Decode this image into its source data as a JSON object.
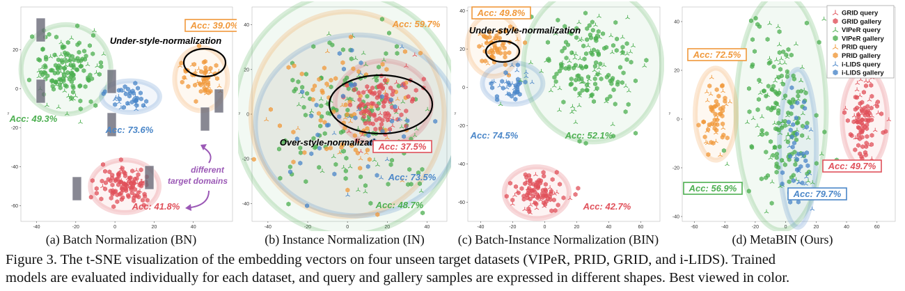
{
  "legend": [
    {
      "label": "GRID query",
      "color": "#e0505a",
      "shape": "star"
    },
    {
      "label": "GRID gallery",
      "color": "#e0505a",
      "shape": "hex"
    },
    {
      "label": "VIPeR query",
      "color": "#4caf50",
      "shape": "star"
    },
    {
      "label": "VIPeR gallery",
      "color": "#4caf50",
      "shape": "hex"
    },
    {
      "label": "PRID query",
      "color": "#f0983a",
      "shape": "star"
    },
    {
      "label": "PRID gallery",
      "color": "#f0983a",
      "shape": "hex"
    },
    {
      "label": "i-LIDS query",
      "color": "#4a86c8",
      "shape": "star"
    },
    {
      "label": "i-LIDS gallery",
      "color": "#4a86c8",
      "shape": "hex"
    }
  ],
  "colors": {
    "GRID": "#e0505a",
    "VIPeR": "#4caf50",
    "PRID": "#f0983a",
    "i-LIDS": "#4a86c8"
  },
  "annotations": {
    "under_style": "Under-style-normalization",
    "over_style": "Over-style-normalization",
    "different_domains": [
      "different",
      "target domains"
    ]
  },
  "caption": {
    "line1": "Figure 3. The t-SNE visualization of the embedding vectors on four unseen target datasets (VIPeR, PRID, GRID, and i-LIDS). Trained",
    "line2": "models are evaluated individually for each dataset, and query and gallery samples are expressed in different shapes. Best viewed in color."
  },
  "chart_data": [
    {
      "type": "scatter",
      "subcaption": "(a) Batch Normalization (BN)",
      "xlabel": "x",
      "ylabel": "y",
      "xlim": [
        -48,
        60
      ],
      "ylim": [
        -68,
        42
      ],
      "xticks": [
        -40,
        -20,
        0,
        20,
        40
      ],
      "yticks": [
        -60,
        -40,
        -20,
        0,
        20
      ],
      "clusters": [
        {
          "dataset": "VIPeR",
          "cx": -25,
          "cy": 10,
          "rx": 17,
          "ry": 17,
          "n": 160
        },
        {
          "dataset": "i-LIDS",
          "cx": 8,
          "cy": -4,
          "rx": 11,
          "ry": 6,
          "n": 40
        },
        {
          "dataset": "PRID",
          "cx": 44,
          "cy": 5,
          "rx": 10,
          "ry": 12,
          "n": 60
        },
        {
          "dataset": "GRID",
          "cx": 5,
          "cy": -50,
          "rx": 13,
          "ry": 10,
          "n": 110
        }
      ],
      "accuracies": [
        {
          "dataset": "PRID",
          "text": "Acc: 39.0%",
          "boxed": true
        },
        {
          "dataset": "VIPeR",
          "text": "Acc: 49.3%",
          "boxed": false
        },
        {
          "dataset": "i-LIDS",
          "text": "Acc: 73.6%",
          "boxed": false
        },
        {
          "dataset": "GRID",
          "text": "Acc: 41.8%",
          "boxed": false
        }
      ]
    },
    {
      "type": "scatter",
      "subcaption": "(b) Instance Normalization (IN)",
      "xlabel": "x",
      "ylabel": "y",
      "xlim": [
        -48,
        50
      ],
      "ylim": [
        -48,
        48
      ],
      "xticks": [
        -40,
        -20,
        0,
        20,
        40
      ],
      "yticks": [
        -40,
        -20,
        0,
        20,
        40
      ],
      "clusters": [
        {
          "dataset": "VIPeR",
          "cx": 0,
          "cy": 0,
          "rx": 42,
          "ry": 40,
          "n": 170
        },
        {
          "dataset": "PRID",
          "cx": 0,
          "cy": 0,
          "rx": 36,
          "ry": 34,
          "n": 90
        },
        {
          "dataset": "GRID",
          "cx": 18,
          "cy": 5,
          "rx": 18,
          "ry": 14,
          "n": 110
        },
        {
          "dataset": "i-LIDS",
          "cx": 5,
          "cy": -5,
          "rx": 38,
          "ry": 30,
          "n": 50
        }
      ],
      "accuracies": [
        {
          "dataset": "PRID",
          "text": "Acc: 59.7%",
          "boxed": false
        },
        {
          "dataset": "GRID",
          "text": "Acc: 37.5%",
          "boxed": true
        },
        {
          "dataset": "i-LIDS",
          "text": "Acc: 73.5%",
          "boxed": false
        },
        {
          "dataset": "VIPeR",
          "text": "Acc: 48.7%",
          "boxed": false
        }
      ]
    },
    {
      "type": "scatter",
      "subcaption": "(c) Batch-Instance Normalization (BIN)",
      "xlabel": "x",
      "ylabel": "y",
      "xlim": [
        -48,
        72
      ],
      "ylim": [
        -70,
        42
      ],
      "xticks": [
        -40,
        -20,
        0,
        20,
        40,
        60
      ],
      "yticks": [
        -60,
        -40,
        -20,
        0,
        20,
        40
      ],
      "clusters": [
        {
          "dataset": "PRID",
          "cx": -32,
          "cy": 22,
          "rx": 12,
          "ry": 12,
          "n": 60
        },
        {
          "dataset": "i-LIDS",
          "cx": -20,
          "cy": 2,
          "rx": 14,
          "ry": 8,
          "n": 40
        },
        {
          "dataset": "VIPeR",
          "cx": 30,
          "cy": 12,
          "rx": 32,
          "ry": 30,
          "n": 180
        },
        {
          "dataset": "GRID",
          "cx": -5,
          "cy": -55,
          "rx": 15,
          "ry": 10,
          "n": 100
        }
      ],
      "accuracies": [
        {
          "dataset": "PRID",
          "text": "Acc: 49.8%",
          "boxed": true
        },
        {
          "dataset": "i-LIDS",
          "text": "Acc: 74.5%",
          "boxed": false
        },
        {
          "dataset": "VIPeR",
          "text": "Acc: 52.1%",
          "boxed": false
        },
        {
          "dataset": "GRID",
          "text": "Acc: 42.7%",
          "boxed": false
        }
      ]
    },
    {
      "type": "scatter",
      "subcaption": "(d) MetaBIN (Ours)",
      "xlabel": "x",
      "ylabel": "y",
      "xlim": [
        -68,
        72
      ],
      "ylim": [
        -42,
        46
      ],
      "xticks": [
        -60,
        -40,
        -20,
        0,
        20,
        40,
        60
      ],
      "yticks": [
        -40,
        -20,
        0,
        20,
        40
      ],
      "clusters": [
        {
          "dataset": "VIPeR",
          "cx": -3,
          "cy": 3,
          "rx": 22,
          "ry": 36,
          "n": 190
        },
        {
          "dataset": "PRID",
          "cx": -46,
          "cy": 2,
          "rx": 10,
          "ry": 14,
          "n": 60
        },
        {
          "dataset": "GRID",
          "cx": 52,
          "cy": 0,
          "rx": 11,
          "ry": 15,
          "n": 100
        },
        {
          "dataset": "i-LIDS",
          "cx": 8,
          "cy": -12,
          "rx": 9,
          "ry": 24,
          "n": 45
        }
      ],
      "accuracies": [
        {
          "dataset": "PRID",
          "text": "Acc: 72.5%",
          "boxed": true
        },
        {
          "dataset": "VIPeR",
          "text": "Acc: 56.9%",
          "boxed": true
        },
        {
          "dataset": "i-LIDS",
          "text": "Acc: 79.7%",
          "boxed": true
        },
        {
          "dataset": "GRID",
          "text": "Acc: 49.7%",
          "boxed": true
        }
      ]
    }
  ]
}
